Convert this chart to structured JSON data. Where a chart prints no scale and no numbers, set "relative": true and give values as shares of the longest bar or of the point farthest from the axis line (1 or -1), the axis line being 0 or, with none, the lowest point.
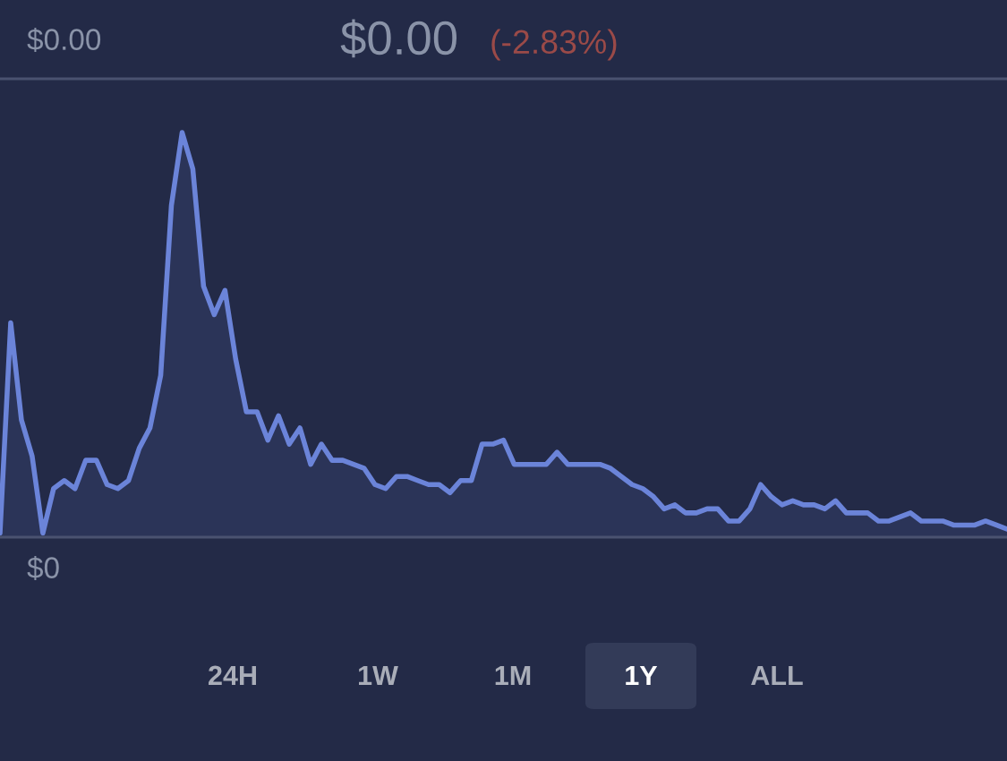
{
  "chart_data": {
    "type": "area",
    "relative": true,
    "title": "$0.00",
    "subtitle": "(-2.83%)",
    "annotations": [
      "$0.00",
      "$0",
      "24H",
      "1W",
      "1M",
      "1Y",
      "ALL"
    ],
    "categories": [
      null,
      null,
      null,
      null,
      null,
      null,
      null,
      null,
      null,
      null,
      null,
      null,
      null,
      null,
      null,
      null,
      null,
      null,
      null,
      null,
      null,
      null,
      null,
      null,
      null,
      null,
      null,
      null,
      null,
      null,
      null,
      null,
      null,
      null,
      null,
      null,
      null,
      null,
      null,
      null,
      null,
      null,
      null,
      null,
      null,
      null,
      null,
      null,
      null,
      null,
      null,
      null,
      null,
      null,
      null,
      null,
      null,
      null,
      null,
      null,
      null,
      null,
      null,
      null,
      null,
      null,
      null,
      null,
      null,
      null,
      null,
      null,
      null,
      null,
      null,
      null,
      null,
      null,
      null,
      null,
      null,
      null,
      null,
      null,
      null,
      null,
      null,
      null,
      null,
      null,
      null,
      null,
      null,
      null,
      null
    ],
    "series": [
      {
        "color": "#6b84d9",
        "values": [
          0.01,
          0.53,
          0.29,
          0.2,
          0.01,
          0.12,
          0.14,
          0.12,
          0.19,
          0.19,
          0.13,
          0.12,
          0.14,
          0.22,
          0.27,
          0.4,
          0.82,
          1.0,
          0.91,
          0.62,
          0.55,
          0.61,
          0.44,
          0.31,
          0.31,
          0.24,
          0.3,
          0.23,
          0.27,
          0.18,
          0.23,
          0.19,
          0.19,
          0.18,
          0.17,
          0.13,
          0.12,
          0.15,
          0.15,
          0.14,
          0.13,
          0.13,
          0.11,
          0.14,
          0.14,
          0.23,
          0.23,
          0.24,
          0.18,
          0.18,
          0.18,
          0.18,
          0.21,
          0.18,
          0.18,
          0.18,
          0.18,
          0.17,
          0.15,
          0.13,
          0.12,
          0.1,
          0.07,
          0.08,
          0.06,
          0.06,
          0.07,
          0.07,
          0.04,
          0.04,
          0.07,
          0.13,
          0.1,
          0.08,
          0.09,
          0.08,
          0.08,
          0.07,
          0.09,
          0.06,
          0.06,
          0.06,
          0.04,
          0.04,
          0.05,
          0.06,
          0.04,
          0.04,
          0.04,
          0.03,
          0.03,
          0.03,
          0.04,
          0.03,
          0.02
        ]
      }
    ],
    "legend": false
  }
}
